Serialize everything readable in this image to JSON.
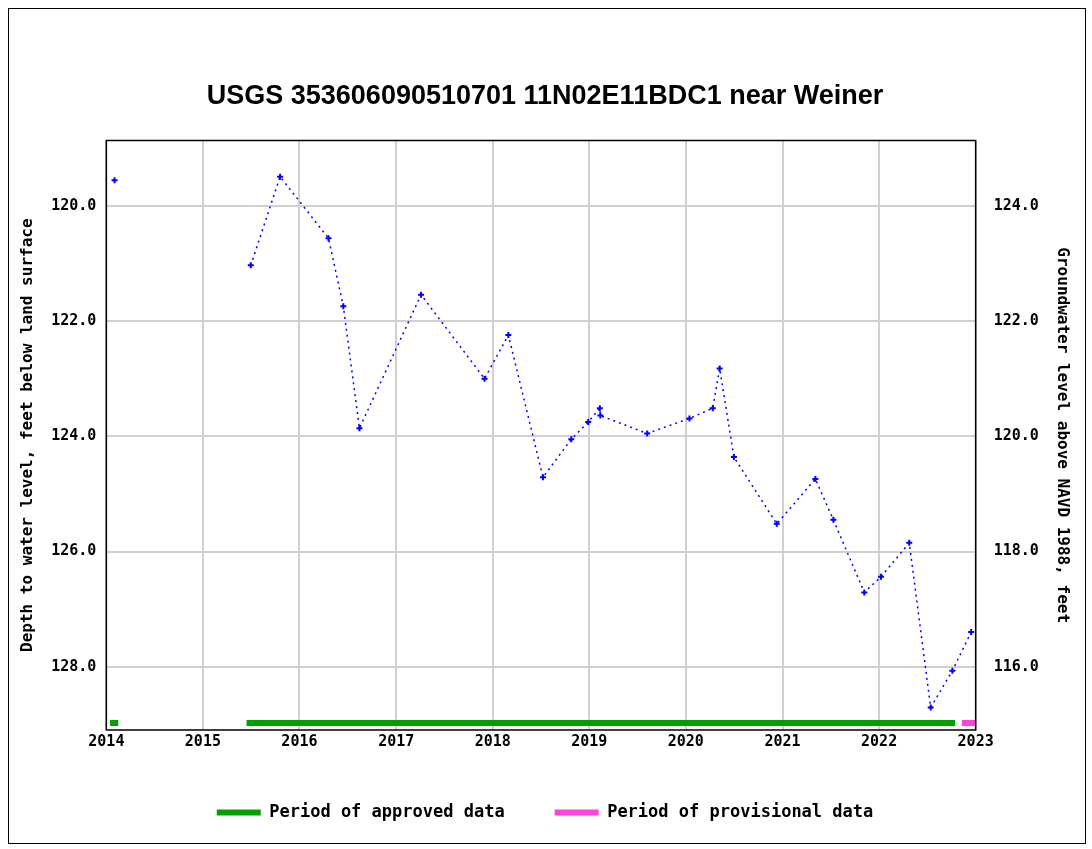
{
  "chart_data": {
    "type": "line",
    "title": "USGS 353606090510701 11N02E11BDC1 near Weiner",
    "ylabel": "Depth to water level, feet below land surface",
    "y2label": "Groundwater level above NAVD 1988, feet",
    "x": [
      "2014-02-01",
      "2015-01-01",
      "2015-07-01",
      "2015-10-20",
      "2016-04-20",
      "2016-06-15",
      "2016-08-15",
      "2017-04-05",
      "2017-12-01",
      "2018-03-01",
      "2018-07-10",
      "2018-10-25",
      "2018-12-28",
      "2019-02-10",
      "2019-02-12",
      "2019-08-08",
      "2020-01-15",
      "2020-04-12",
      "2020-05-08",
      "2020-07-01",
      "2020-12-10",
      "2021-05-05",
      "2021-07-12",
      "2021-11-06",
      "2022-01-08",
      "2022-04-25",
      "2022-07-15",
      "2022-10-05",
      "2022-12-15"
    ],
    "series": [
      {
        "color": "#0000ff",
        "values": [
          119.55,
          null,
          121.03,
          119.49,
          120.56,
          121.74,
          123.86,
          121.54,
          123.0,
          122.24,
          124.71,
          124.05,
          123.75,
          123.51,
          123.64,
          123.95,
          123.69,
          123.51,
          122.82,
          124.36,
          125.52,
          124.74,
          125.45,
          126.71,
          126.44,
          125.85,
          128.71,
          128.07,
          127.4
        ]
      },
      {
        "name": "Period of approved data",
        "color": "#00a000",
        "line_style": "solid",
        "marker": "none",
        "x": [
          "2014-01-15",
          "2014-02-15",
          "2015-01-01",
          "2015-06-15",
          "2022-10-15"
        ],
        "values": [
          128.98,
          128.98,
          null,
          128.98,
          128.98
        ]
      },
      {
        "name": "Period of provisional data",
        "color": "#ff44dd",
        "line_style": "solid",
        "marker": "none",
        "x": [
          "2022-11-10",
          "2023-01-01"
        ],
        "values": [
          128.98,
          128.98
        ]
      }
    ],
    "xlim": [
      "2014",
      "2023"
    ],
    "xticks": [
      "2014",
      "2015",
      "2016",
      "2017",
      "2018",
      "2019",
      "2020",
      "2021",
      "2022",
      "2023"
    ],
    "ylim": [
      129.1,
      118.86
    ],
    "yticks": [
      {
        "value": 120,
        "label": "120.0"
      },
      {
        "value": 122,
        "label": "122.0"
      },
      {
        "value": 124,
        "label": "124.0"
      },
      {
        "value": 126,
        "label": "126.0"
      },
      {
        "value": 128,
        "label": "128.0"
      }
    ],
    "y2lim": [
      114.9,
      125.14
    ],
    "y2ticks": [
      {
        "value": 116,
        "label": "116.0"
      },
      {
        "value": 118,
        "label": "118.0"
      },
      {
        "value": 120,
        "label": "120.0"
      },
      {
        "value": 122,
        "label": "122.0"
      },
      {
        "value": 124,
        "label": "124.0"
      }
    ],
    "grid": true,
    "legend": "bottom",
    "marker": "cross",
    "line_style": "dotted"
  }
}
